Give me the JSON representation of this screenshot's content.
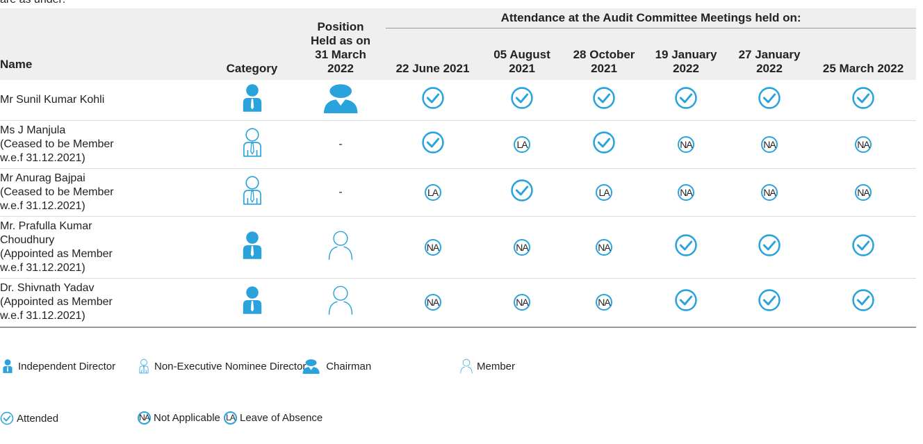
{
  "intro": "are as under:",
  "table": {
    "headers": {
      "name": "Name",
      "category": "Category",
      "position": "Position Held as on 31 March 2022",
      "attendance": "Attendance at the Audit Committee Meetings held on:",
      "dates": [
        "22 June 2021",
        "05 August 2021",
        "28 October 2021",
        "19 January 2022",
        "27 January 2022",
        "25 March 2022"
      ]
    },
    "rows": [
      {
        "name": [
          "Mr Sunil Kumar Kohli"
        ],
        "category": "Independent Director",
        "position": "Chairman",
        "attendance": [
          "Attended",
          "Attended",
          "Attended",
          "Attended",
          "Attended",
          "Attended"
        ]
      },
      {
        "name": [
          "Ms J Manjula",
          "(Ceased to be Member",
          "w.e.f 31.12.2021)"
        ],
        "category": "Non-Executive Nominee Director",
        "position": "-",
        "attendance": [
          "Attended",
          "LA",
          "Attended",
          "NA",
          "NA",
          "NA"
        ]
      },
      {
        "name": [
          "Mr Anurag Bajpai",
          "(Ceased to be Member",
          "w.e.f 31.12.2021)"
        ],
        "category": "Non-Executive Nominee Director",
        "position": "-",
        "attendance": [
          "LA",
          "Attended",
          "LA",
          "NA",
          "NA",
          "NA"
        ]
      },
      {
        "name": [
          "Mr. Prafulla Kumar",
          "Choudhury",
          "(Appointed as Member",
          "w.e.f 31.12.2021)"
        ],
        "category": "Independent Director",
        "position": "Member",
        "attendance": [
          "NA",
          "NA",
          "NA",
          "Attended",
          "Attended",
          "Attended"
        ]
      },
      {
        "name": [
          "Dr. Shivnath Yadav",
          "(Appointed as Member",
          "w.e.f 31.12.2021)"
        ],
        "category": "Independent Director",
        "position": "Member",
        "attendance": [
          "NA",
          "NA",
          "NA",
          "Attended",
          "Attended",
          "Attended"
        ]
      }
    ]
  },
  "category_legend": [
    {
      "label": "Independent Director"
    },
    {
      "label": "Non-Executive Nominee Director"
    }
  ],
  "position_legend": [
    {
      "label": "Chairman"
    },
    {
      "label": "Member"
    }
  ],
  "attendance_legend": [
    {
      "label": "Attended"
    },
    {
      "symbol": "NA",
      "label": "Not Applicable"
    },
    {
      "symbol": "LA",
      "label": "Leave of Absence"
    }
  ]
}
